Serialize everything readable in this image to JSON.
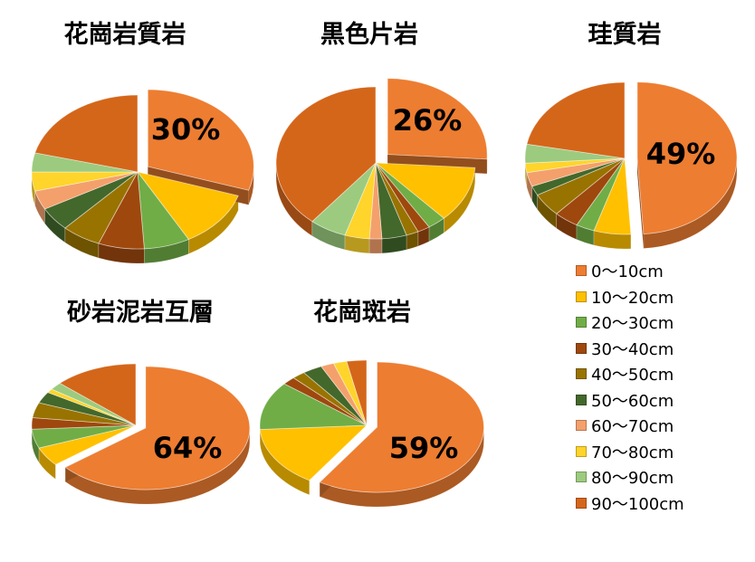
{
  "chart_data": [
    {
      "type": "pie",
      "title": "花崗岩質岩",
      "categories": [
        "0～10cm",
        "10～20cm",
        "20～30cm",
        "30～40cm",
        "40～50cm",
        "50～60cm",
        "60～70cm",
        "70～80cm",
        "80～90cm",
        "90～100cm"
      ],
      "values": [
        30,
        12,
        7,
        7,
        6,
        5,
        4,
        4,
        4,
        21
      ],
      "labels": [
        "30%"
      ]
    },
    {
      "type": "pie",
      "title": "黒色片岩",
      "categories": [
        "0～10cm",
        "10～20cm",
        "20～30cm",
        "30～40cm",
        "40～50cm",
        "50～60cm",
        "60～70cm",
        "70～80cm",
        "80～90cm",
        "90～100cm"
      ],
      "values": [
        26,
        12,
        3,
        2,
        2,
        4,
        2,
        4,
        6,
        39
      ],
      "labels": [
        "26%"
      ]
    },
    {
      "type": "pie",
      "title": "珪質岩",
      "categories": [
        "0～10cm",
        "10～20cm",
        "20～30cm",
        "30～40cm",
        "40～50cm",
        "50～60cm",
        "60～70cm",
        "70～80cm",
        "80～90cm",
        "90～100cm"
      ],
      "values": [
        49,
        6,
        3,
        4,
        5,
        2,
        3,
        2,
        4,
        22
      ],
      "labels": [
        "49%"
      ]
    },
    {
      "type": "pie",
      "title": "砂岩泥岩互層",
      "categories": [
        "0～10cm",
        "10～20cm",
        "20～30cm",
        "30～40cm",
        "40～50cm",
        "50～60cm",
        "60～70cm",
        "70～80cm",
        "80～90cm",
        "90～100cm"
      ],
      "values": [
        64,
        5,
        5,
        3,
        4,
        3,
        0,
        1,
        2,
        13
      ],
      "labels": [
        "64%"
      ]
    },
    {
      "type": "pie",
      "title": "花崗斑岩",
      "categories": [
        "0～10cm",
        "10～20cm",
        "20～30cm",
        "30～40cm",
        "40～50cm",
        "50～60cm",
        "60～70cm",
        "70～80cm",
        "80～90cm",
        "90～100cm"
      ],
      "values": [
        59,
        15,
        12,
        2,
        2,
        3,
        2,
        2,
        0,
        3
      ],
      "labels": [
        "59%"
      ]
    }
  ],
  "legend": {
    "placement": "bottom-right",
    "items": [
      {
        "label": "0～10cm",
        "color": "#ED7D31"
      },
      {
        "label": "10～20cm",
        "color": "#FFC000"
      },
      {
        "label": "20～30cm",
        "color": "#70AD47"
      },
      {
        "label": "30～40cm",
        "color": "#9E480E"
      },
      {
        "label": "40～50cm",
        "color": "#997300"
      },
      {
        "label": "50～60cm",
        "color": "#43682B"
      },
      {
        "label": "60～70cm",
        "color": "#F4A06C"
      },
      {
        "label": "70～80cm",
        "color": "#FFD42B"
      },
      {
        "label": "80～90cm",
        "color": "#9CCB7F"
      },
      {
        "label": "90～100cm",
        "color": "#D4661A"
      }
    ]
  }
}
